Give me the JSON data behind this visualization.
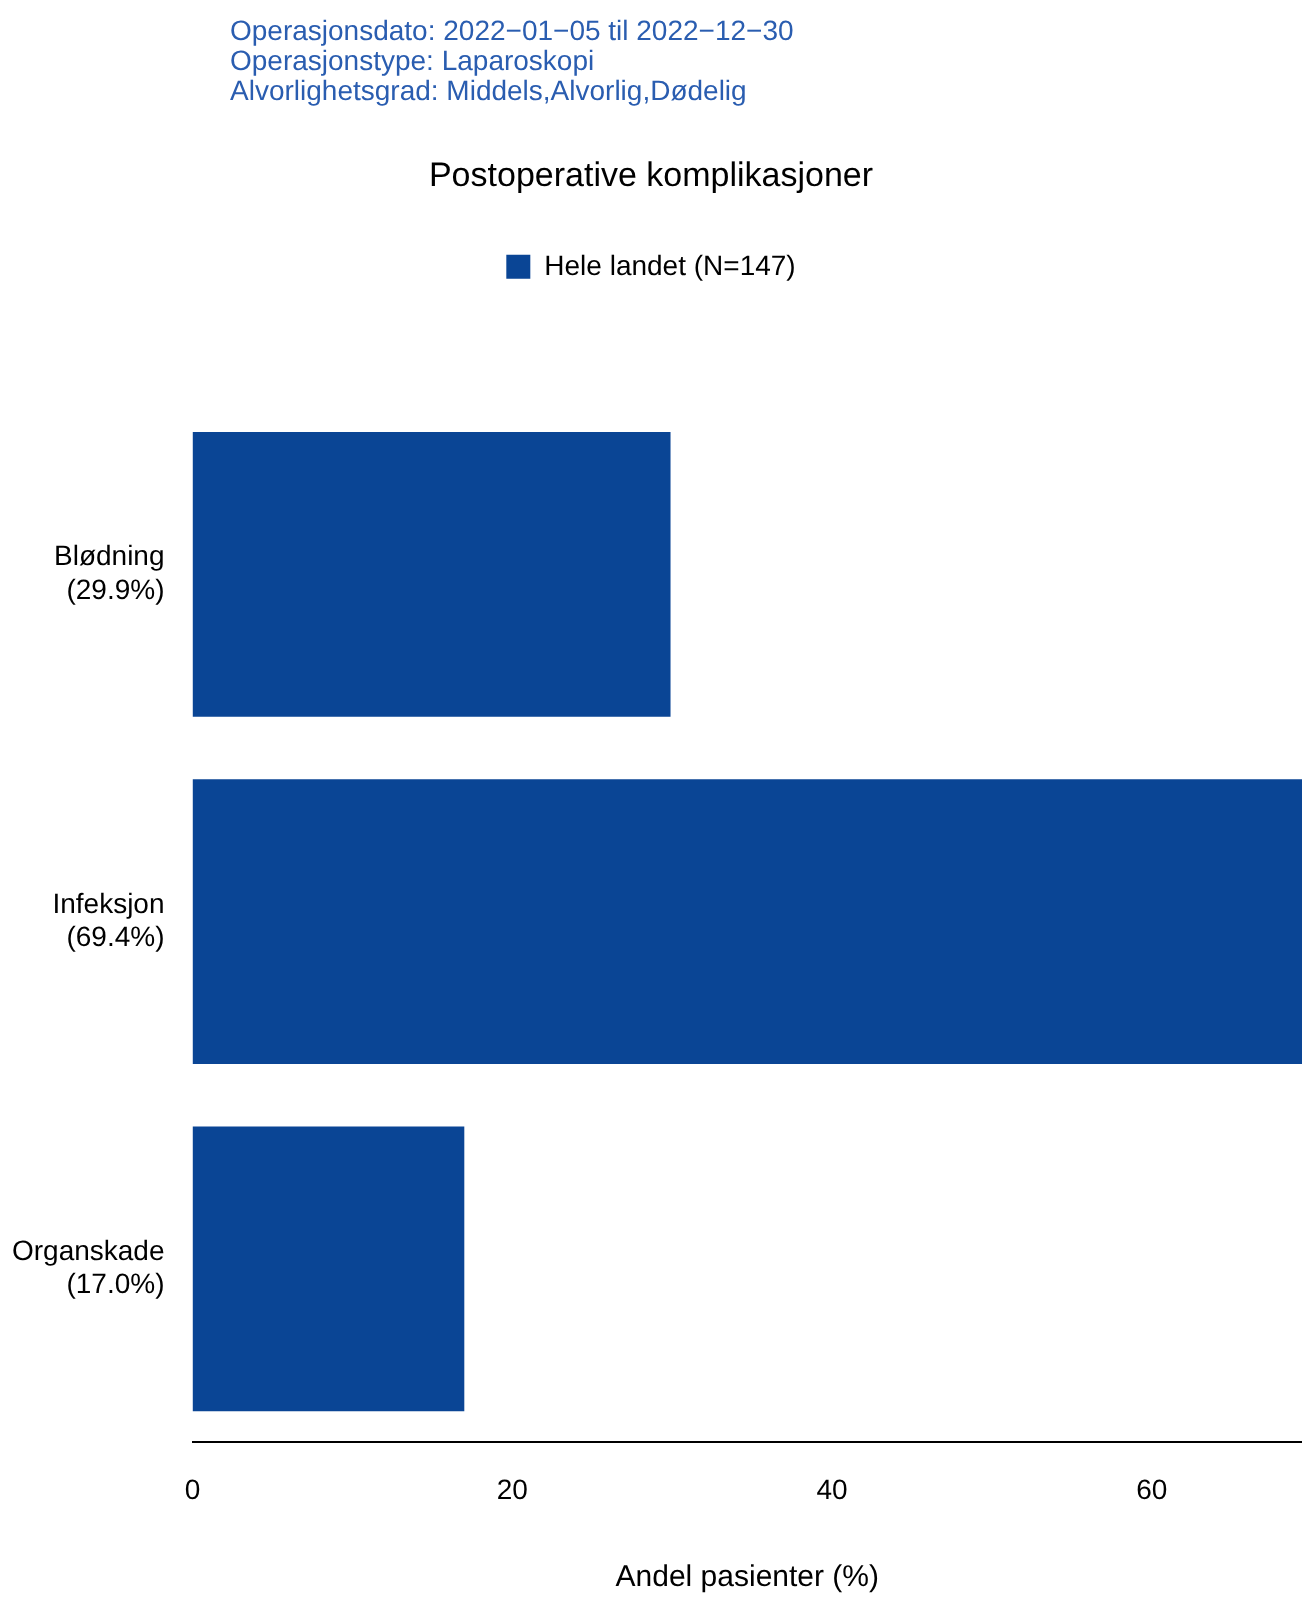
{
  "chart_data": {
    "type": "bar",
    "orientation": "horizontal",
    "title": "Postoperative komplikasjoner",
    "xlabel": "Andel pasienter (%)",
    "annotations": [
      "Operasjonsdato: 2022−01−05 til 2022−12−30",
      "Operasjonstype: Laparoskopi",
      "Alvorlighetsgrad: Middels,Alvorlig,Dødelig"
    ],
    "categories": [
      "Blødning",
      "Infeksjon",
      "Organskade"
    ],
    "series": [
      {
        "name": "Hele landet (N=147)",
        "color": "#0a4595",
        "values": [
          29.9,
          69.4,
          17.0
        ],
        "value_labels": [
          "(29.9%)",
          "(69.4%)",
          "(17.0%)"
        ]
      }
    ],
    "xlim": [
      0,
      69.4
    ],
    "xticks": [
      0,
      20,
      40,
      60
    ],
    "grid": false,
    "legend": "top"
  }
}
